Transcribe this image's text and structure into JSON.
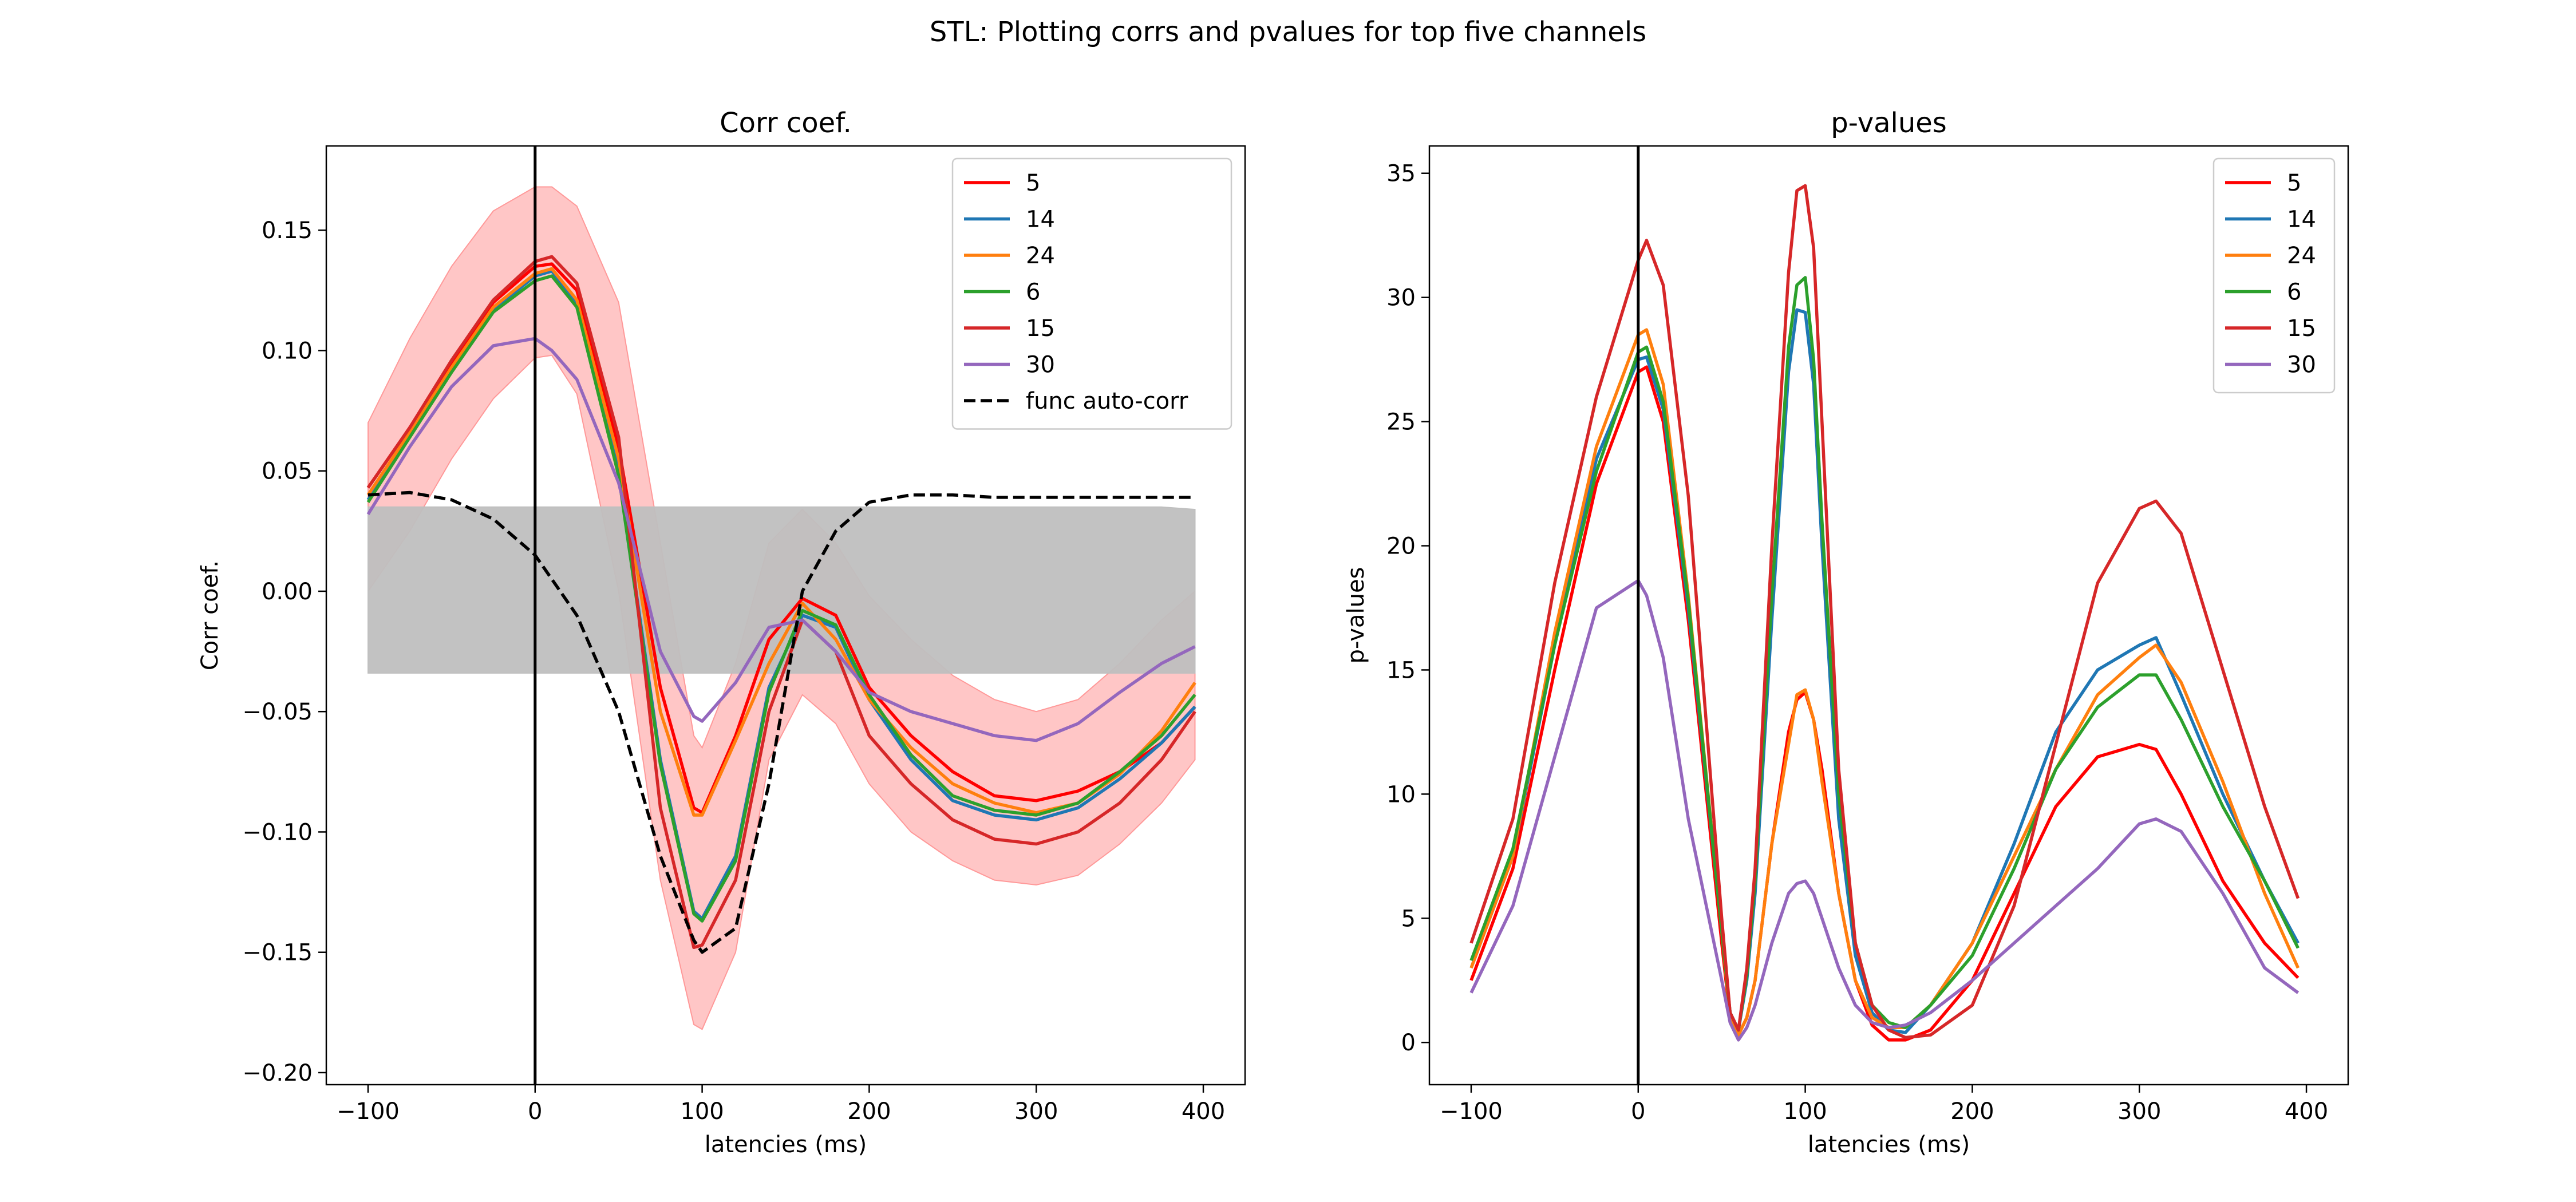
{
  "figure": {
    "suptitle": "STL: Plotting corrs and pvalues for top five channels"
  },
  "colors": {
    "5": "#ff0000",
    "14": "#1f77b4",
    "24": "#ff7f0e",
    "6": "#2ca02c",
    "15": "#d62728",
    "30": "#9467bd",
    "auto": "#000000",
    "band_ci": "#ffb3b3",
    "band_null": "#bfbfbf"
  },
  "chart_data": [
    {
      "type": "line",
      "title": "Corr coef.",
      "xlabel": "latencies (ms)",
      "ylabel": "Corr coef.",
      "xlim": [
        -125,
        425
      ],
      "ylim": [
        -0.205,
        0.185
      ],
      "xticks": [
        -100,
        0,
        100,
        200,
        300,
        400
      ],
      "yticks": [
        -0.2,
        -0.15,
        -0.1,
        -0.05,
        0.0,
        0.05,
        0.1,
        0.15
      ],
      "ytick_labels": [
        "−0.20",
        "−0.15",
        "−0.10",
        "−0.05",
        "0.00",
        "0.05",
        "0.10",
        "0.15"
      ],
      "xtick_labels": [
        "−100",
        "0",
        "100",
        "200",
        "300",
        "400"
      ],
      "vline_x": 0,
      "legend_position": "top-right",
      "x": [
        -100,
        -75,
        -50,
        -25,
        0,
        10,
        25,
        50,
        75,
        95,
        100,
        120,
        140,
        160,
        180,
        200,
        225,
        250,
        275,
        300,
        325,
        350,
        375,
        395
      ],
      "series": [
        {
          "name": "5",
          "color_key": "5",
          "dashed": false,
          "values": [
            0.043,
            0.068,
            0.095,
            0.12,
            0.135,
            0.136,
            0.125,
            0.06,
            -0.04,
            -0.09,
            -0.092,
            -0.06,
            -0.02,
            -0.003,
            -0.01,
            -0.04,
            -0.06,
            -0.075,
            -0.085,
            -0.087,
            -0.083,
            -0.075,
            -0.063,
            -0.048
          ]
        },
        {
          "name": "14",
          "color_key": "14",
          "dashed": false,
          "values": [
            0.038,
            0.065,
            0.092,
            0.117,
            0.131,
            0.133,
            0.12,
            0.05,
            -0.07,
            -0.133,
            -0.136,
            -0.11,
            -0.04,
            -0.01,
            -0.015,
            -0.045,
            -0.07,
            -0.087,
            -0.093,
            -0.095,
            -0.09,
            -0.078,
            -0.063,
            -0.048
          ]
        },
        {
          "name": "24",
          "color_key": "24",
          "dashed": false,
          "values": [
            0.04,
            0.066,
            0.093,
            0.118,
            0.132,
            0.134,
            0.121,
            0.055,
            -0.05,
            -0.093,
            -0.093,
            -0.062,
            -0.03,
            -0.005,
            -0.02,
            -0.045,
            -0.065,
            -0.08,
            -0.088,
            -0.092,
            -0.088,
            -0.076,
            -0.058,
            -0.038
          ]
        },
        {
          "name": "6",
          "color_key": "6",
          "dashed": false,
          "values": [
            0.037,
            0.064,
            0.091,
            0.116,
            0.129,
            0.131,
            0.118,
            0.048,
            -0.072,
            -0.134,
            -0.137,
            -0.112,
            -0.042,
            -0.008,
            -0.014,
            -0.043,
            -0.068,
            -0.085,
            -0.091,
            -0.093,
            -0.088,
            -0.075,
            -0.06,
            -0.043
          ]
        },
        {
          "name": "15",
          "color_key": "15",
          "dashed": false,
          "values": [
            0.043,
            0.068,
            0.096,
            0.121,
            0.137,
            0.139,
            0.128,
            0.064,
            -0.09,
            -0.148,
            -0.147,
            -0.12,
            -0.05,
            -0.012,
            -0.025,
            -0.06,
            -0.08,
            -0.095,
            -0.103,
            -0.105,
            -0.1,
            -0.088,
            -0.07,
            -0.05
          ]
        },
        {
          "name": "30",
          "color_key": "30",
          "dashed": false,
          "values": [
            0.032,
            0.06,
            0.085,
            0.102,
            0.105,
            0.1,
            0.088,
            0.045,
            -0.025,
            -0.052,
            -0.054,
            -0.038,
            -0.015,
            -0.012,
            -0.025,
            -0.042,
            -0.05,
            -0.055,
            -0.06,
            -0.062,
            -0.055,
            -0.042,
            -0.03,
            -0.023
          ]
        },
        {
          "name": "func auto-corr",
          "color_key": "auto",
          "dashed": true,
          "values": [
            0.04,
            0.041,
            0.038,
            0.03,
            0.015,
            0.005,
            -0.01,
            -0.05,
            -0.11,
            -0.145,
            -0.15,
            -0.14,
            -0.08,
            0.0,
            0.025,
            0.037,
            0.04,
            0.04,
            0.039,
            0.039,
            0.039,
            0.039,
            0.039,
            0.039
          ]
        }
      ],
      "bands": [
        {
          "color_key": "band_null",
          "opacity": 0.95,
          "lower": [
            -0.034,
            -0.034,
            -0.034,
            -0.034,
            -0.034,
            -0.034,
            -0.034,
            -0.034,
            -0.034,
            -0.034,
            -0.034,
            -0.034,
            -0.034,
            -0.034,
            -0.034,
            -0.034,
            -0.034,
            -0.034,
            -0.034,
            -0.034,
            -0.034,
            -0.034,
            -0.034,
            -0.034
          ],
          "upper": [
            0.035,
            0.035,
            0.035,
            0.035,
            0.035,
            0.035,
            0.035,
            0.035,
            0.035,
            0.035,
            0.035,
            0.035,
            0.035,
            0.035,
            0.035,
            0.035,
            0.035,
            0.035,
            0.035,
            0.035,
            0.035,
            0.035,
            0.035,
            0.034
          ]
        },
        {
          "color_key": "band_ci",
          "opacity": 0.75,
          "lower": [
            0.0,
            0.025,
            0.055,
            0.08,
            0.097,
            0.098,
            0.082,
            0.0,
            -0.12,
            -0.18,
            -0.182,
            -0.15,
            -0.07,
            -0.043,
            -0.055,
            -0.08,
            -0.1,
            -0.112,
            -0.12,
            -0.122,
            -0.118,
            -0.105,
            -0.088,
            -0.07
          ]
        },
        {
          "color_key": "band_ci",
          "opacity": 0.75,
          "upper": [
            0.07,
            0.105,
            0.135,
            0.158,
            0.168,
            0.168,
            0.16,
            0.12,
            0.02,
            -0.06,
            -0.065,
            -0.03,
            0.02,
            0.034,
            0.02,
            -0.002,
            -0.02,
            -0.035,
            -0.045,
            -0.05,
            -0.045,
            -0.03,
            -0.012,
            0.0
          ]
        }
      ]
    },
    {
      "type": "line",
      "title": "p-values",
      "xlabel": "latencies (ms)",
      "ylabel": "p-values",
      "xlim": [
        -125,
        425
      ],
      "ylim": [
        -1.7,
        36.1
      ],
      "xticks": [
        -100,
        0,
        100,
        200,
        300,
        400
      ],
      "yticks": [
        0,
        5,
        10,
        15,
        20,
        25,
        30,
        35
      ],
      "ytick_labels": [
        "0",
        "5",
        "10",
        "15",
        "20",
        "25",
        "30",
        "35"
      ],
      "xtick_labels": [
        "−100",
        "0",
        "100",
        "200",
        "300",
        "400"
      ],
      "vline_x": 0,
      "legend_position": "top-right",
      "x": [
        -100,
        -75,
        -50,
        -25,
        0,
        5,
        15,
        30,
        50,
        55,
        60,
        65,
        70,
        80,
        90,
        95,
        100,
        105,
        110,
        120,
        130,
        140,
        150,
        160,
        175,
        200,
        225,
        250,
        275,
        300,
        310,
        325,
        350,
        375,
        395
      ],
      "series": [
        {
          "name": "5",
          "color_key": "5",
          "dashed": false,
          "values": [
            2.5,
            7.0,
            15.0,
            22.5,
            27.0,
            27.2,
            25.0,
            17.0,
            4.0,
            1.0,
            0.3,
            1.0,
            2.5,
            8.0,
            12.5,
            13.8,
            14.1,
            13.0,
            11.0,
            6.0,
            2.5,
            0.7,
            0.1,
            0.1,
            0.5,
            2.5,
            6.0,
            9.5,
            11.5,
            12.0,
            11.8,
            10.0,
            6.5,
            4.0,
            2.6
          ]
        },
        {
          "name": "14",
          "color_key": "14",
          "dashed": false,
          "values": [
            3.0,
            7.5,
            16.0,
            23.5,
            27.5,
            27.6,
            25.5,
            17.5,
            4.5,
            1.2,
            0.5,
            2.5,
            6.0,
            17.0,
            27.0,
            29.5,
            29.4,
            26.5,
            20.0,
            9.0,
            3.5,
            1.2,
            0.5,
            0.4,
            1.5,
            4.0,
            8.0,
            12.5,
            15.0,
            16.0,
            16.3,
            14.0,
            10.0,
            6.5,
            4.0
          ]
        },
        {
          "name": "24",
          "color_key": "24",
          "dashed": false,
          "values": [
            3.0,
            7.5,
            16.5,
            24.0,
            28.5,
            28.7,
            26.5,
            18.0,
            4.5,
            1.0,
            0.3,
            1.0,
            2.5,
            8.0,
            12.0,
            14.0,
            14.2,
            13.0,
            10.5,
            6.0,
            2.5,
            1.0,
            0.6,
            0.6,
            1.5,
            4.0,
            7.5,
            11.0,
            14.0,
            15.5,
            16.0,
            14.5,
            10.5,
            6.0,
            3.0
          ]
        },
        {
          "name": "6",
          "color_key": "6",
          "dashed": false,
          "values": [
            3.3,
            7.8,
            16.0,
            23.0,
            27.8,
            28.0,
            25.8,
            17.8,
            4.5,
            1.2,
            0.5,
            2.7,
            6.5,
            18.0,
            28.0,
            30.5,
            30.8,
            27.5,
            21.0,
            10.0,
            4.0,
            1.5,
            0.8,
            0.6,
            1.5,
            3.5,
            7.0,
            11.0,
            13.5,
            14.8,
            14.8,
            13.0,
            9.5,
            6.5,
            3.8
          ]
        },
        {
          "name": "15",
          "color_key": "15",
          "dashed": false,
          "values": [
            4.0,
            9.0,
            18.5,
            26.0,
            31.5,
            32.3,
            30.5,
            22.0,
            5.0,
            1.2,
            0.5,
            3.0,
            7.0,
            20.0,
            31.0,
            34.3,
            34.5,
            32.0,
            25.0,
            11.0,
            4.0,
            1.5,
            0.5,
            0.2,
            0.3,
            1.5,
            5.5,
            12.0,
            18.5,
            21.5,
            21.8,
            20.5,
            15.0,
            9.5,
            5.8
          ]
        },
        {
          "name": "30",
          "color_key": "30",
          "dashed": false,
          "values": [
            2.0,
            5.5,
            11.5,
            17.5,
            18.6,
            18.0,
            15.5,
            9.0,
            2.5,
            0.8,
            0.1,
            0.6,
            1.5,
            4.0,
            6.0,
            6.4,
            6.5,
            6.0,
            5.0,
            3.0,
            1.5,
            0.8,
            0.6,
            0.7,
            1.2,
            2.5,
            4.0,
            5.5,
            7.0,
            8.8,
            9.0,
            8.5,
            6.0,
            3.0,
            2.0
          ]
        }
      ]
    }
  ]
}
